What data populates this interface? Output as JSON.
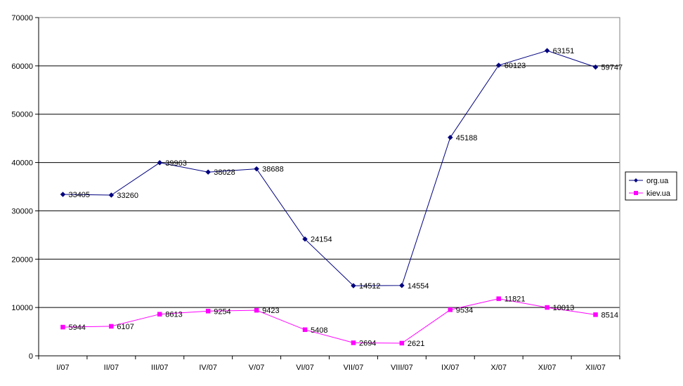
{
  "chart_data": {
    "type": "line",
    "title": "",
    "xlabel": "",
    "ylabel": "",
    "categories": [
      "I/07",
      "II/07",
      "III/07",
      "IV/07",
      "V/07",
      "VI/07",
      "VII/07",
      "VIII/07",
      "IX/07",
      "X/07",
      "XI/07",
      "XII/07"
    ],
    "ylim": [
      0,
      70000
    ],
    "yticks": [
      0,
      10000,
      20000,
      30000,
      40000,
      50000,
      60000,
      70000
    ],
    "grid": "horizontal",
    "legend_position": "right",
    "series": [
      {
        "name": "org.ua",
        "color": "#000080",
        "marker": "diamond",
        "values": [
          33405,
          33260,
          39963,
          38028,
          38688,
          24154,
          14512,
          14554,
          45188,
          60123,
          63151,
          59747
        ]
      },
      {
        "name": "kiev.ua",
        "color": "#ff00ff",
        "marker": "square",
        "values": [
          5944,
          6107,
          8613,
          9254,
          9423,
          5408,
          2694,
          2621,
          9534,
          11821,
          10013,
          8514
        ]
      }
    ]
  }
}
